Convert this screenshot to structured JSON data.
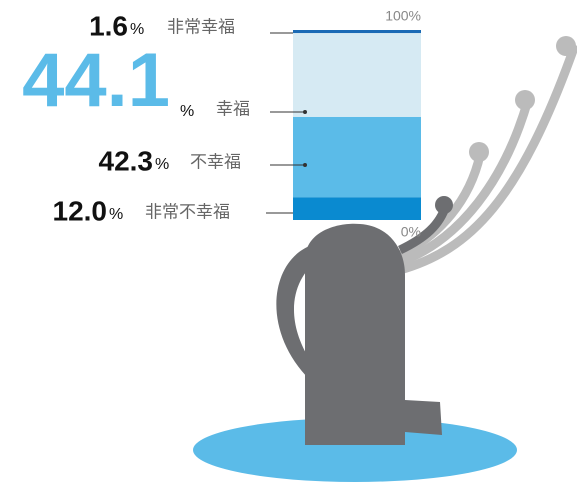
{
  "chart_data": {
    "type": "stacked_bar",
    "categories": [
      "非常不幸福",
      "不幸福",
      "幸福",
      "非常幸福"
    ],
    "values": [
      12.0,
      42.3,
      44.1,
      1.6
    ],
    "value_labels": [
      "12.0",
      "42.3",
      "44.1",
      "1.6"
    ],
    "value_suffix": "%",
    "colors": [
      "#0a8ad0",
      "#5bbbe8",
      "#d6eaf3",
      "#1a6ab5"
    ],
    "ylim": [
      0,
      100
    ],
    "yticks": [
      {
        "value": 0,
        "label": "0%"
      },
      {
        "value": 100,
        "label": "100%"
      }
    ]
  }
}
